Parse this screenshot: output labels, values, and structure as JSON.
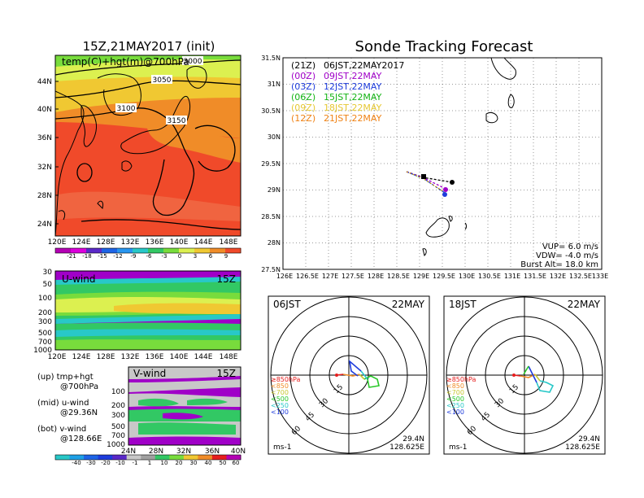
{
  "left_panel": {
    "title": "15Z,21MAY2017 (init)",
    "map_title": "temp(C)+hgt(m)@700hPa",
    "lat_labels": [
      "44N",
      "40N",
      "36N",
      "32N",
      "28N",
      "24N"
    ],
    "lon_labels": [
      "120E",
      "124E",
      "128E",
      "132E",
      "136E",
      "140E",
      "144E",
      "148E"
    ],
    "contour_labels": [
      "3050",
      "3100",
      "3150",
      "3000"
    ],
    "colorbar_labels": [
      "-21",
      "-18",
      "-15",
      "-12",
      "-9",
      "-6",
      "-3",
      "0",
      "3",
      "6",
      "9"
    ],
    "colorbar_colors": [
      "#b400b4",
      "#dc00dc",
      "#5a28c8",
      "#1e64e6",
      "#2896f0",
      "#28c8c8",
      "#32c864",
      "#78dc3c",
      "#dcf050",
      "#f0c832",
      "#f08c28",
      "#f04a2a"
    ]
  },
  "u_wind": {
    "label": "U-wind",
    "time": "15Z",
    "y_labels": [
      "30",
      "50",
      "100",
      "200",
      "300",
      "500",
      "700",
      "1000"
    ],
    "x_labels": [
      "120E",
      "124E",
      "128E",
      "132E",
      "136E",
      "140E",
      "144E",
      "148E"
    ]
  },
  "v_wind": {
    "label": "V-wind",
    "time": "15Z",
    "y_labels": [
      "100",
      "200",
      "300",
      "500",
      "700",
      "1000"
    ],
    "x_labels": [
      "24N",
      "28N",
      "32N",
      "36N",
      "40N"
    ],
    "colorbar_labels": [
      "-40",
      "-30",
      "-20",
      "-10",
      "-1",
      "1",
      "10",
      "20",
      "30",
      "40",
      "50",
      "60"
    ]
  },
  "legend_notes": {
    "up": "(up) tmp+hgt",
    "up_level": "@700hPa",
    "mid": "(mid) u-wind",
    "mid_value": "@29.36N",
    "bot": "(bot) v-wind",
    "bot_value": "@128.66E"
  },
  "tracking": {
    "title": "Sonde Tracking Forecast",
    "lat_labels": [
      "31.5N",
      "31N",
      "30.5N",
      "30N",
      "29.5N",
      "29N",
      "28.5N",
      "28N",
      "27.5N"
    ],
    "lon_labels": [
      "126E",
      "126.5E",
      "127E",
      "127.5E",
      "128E",
      "128.5E",
      "129E",
      "129.5E",
      "130E",
      "130.5E",
      "131E",
      "131.5E",
      "132E",
      "132.5E",
      "133E"
    ],
    "legend": [
      {
        "utc": "(21Z)",
        "jst": "06JST,22MAY2017",
        "color": "#000000"
      },
      {
        "utc": "(00Z)",
        "jst": "09JST,22MAY",
        "color": "#a000c8"
      },
      {
        "utc": "(03Z)",
        "jst": "12JST,22MAY",
        "color": "#1e3cdc"
      },
      {
        "utc": "(06Z)",
        "jst": "15JST,22MAY",
        "color": "#14b414"
      },
      {
        "utc": "(09Z)",
        "jst": "18JST,22MAY",
        "color": "#e6c832"
      },
      {
        "utc": "(12Z)",
        "jst": "21JST,22MAY",
        "color": "#f08214"
      }
    ],
    "vup": "VUP=  6.0 m/s",
    "vdw": "VDW= -4.0 m/s",
    "burst": "Burst Alt= 18.0 km"
  },
  "polar1": {
    "time": "06JST",
    "date": "22MAY",
    "rings": [
      "15",
      "30",
      "45",
      "60"
    ],
    "levels": [
      {
        "label": "≥850hPa",
        "color": "#e61e1e"
      },
      {
        "label": "<850",
        "color": "#f08c28"
      },
      {
        "label": "<700",
        "color": "#c8c832"
      },
      {
        "label": "<500",
        "color": "#28c828"
      },
      {
        "label": "<250",
        "color": "#28c8c8"
      },
      {
        "label": "<100",
        "color": "#1e3cdc"
      }
    ],
    "unit": "ms-1",
    "lat": "29.4N",
    "lon": "128.625E"
  },
  "polar2": {
    "time": "18JST",
    "date": "22MAY",
    "rings": [
      "15",
      "30",
      "45",
      "60"
    ],
    "levels": [
      {
        "label": "≥850hPa",
        "color": "#e61e1e"
      },
      {
        "label": "<850",
        "color": "#f08c28"
      },
      {
        "label": "<700",
        "color": "#c8c832"
      },
      {
        "label": "<500",
        "color": "#28c828"
      },
      {
        "label": "<250",
        "color": "#28c8c8"
      },
      {
        "label": "<100",
        "color": "#1e3cdc"
      }
    ],
    "unit": "ms-1",
    "lat": "29.4N",
    "lon": "128.625E"
  }
}
